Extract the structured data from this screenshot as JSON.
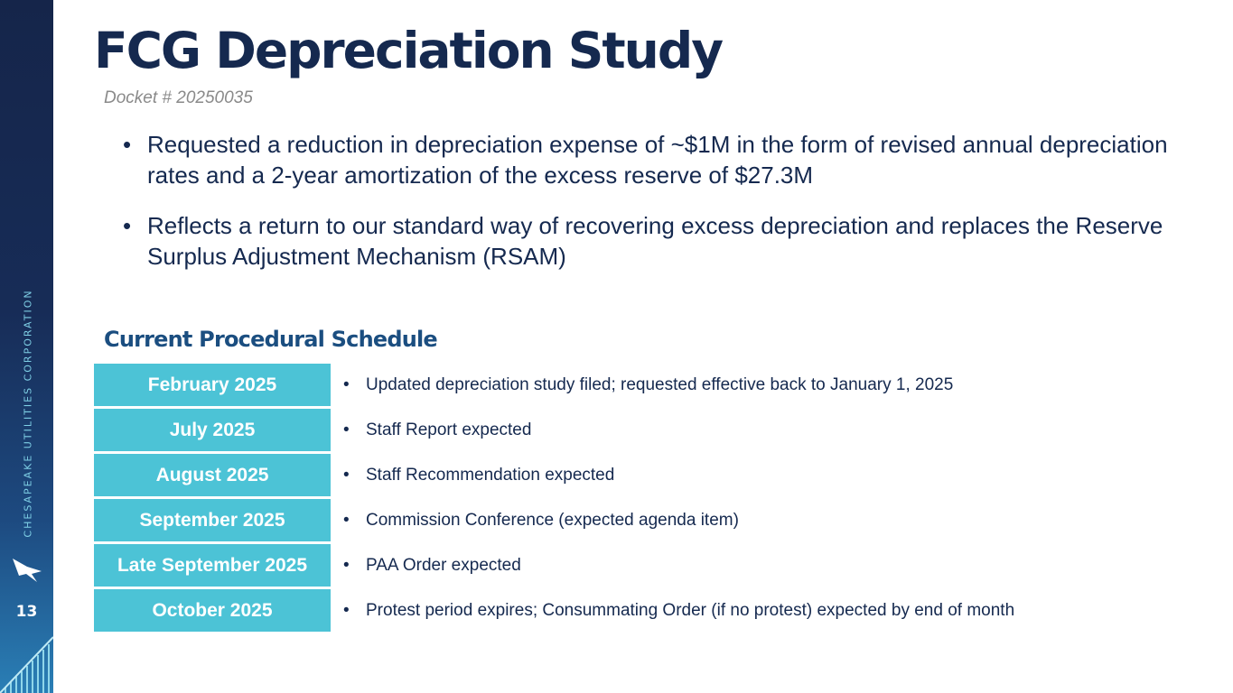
{
  "sidebar": {
    "brand": "CHESAPEAKE UTILITIES CORPORATION",
    "logo_icon": "bird-logo-icon",
    "page_number": "13"
  },
  "header": {
    "title": "FCG Depreciation Study",
    "docket": "Docket # 20250035"
  },
  "bullets": [
    "Requested a reduction in depreciation expense of ~$1M in the form of revised annual depreciation rates and a 2-year amortization of the excess reserve of $27.3M",
    "Reflects a return to our standard way of recovering excess depreciation and replaces the Reserve Surplus Adjustment Mechanism (RSAM)"
  ],
  "schedule": {
    "heading": "Current Procedural Schedule",
    "bullet_glyph": "•",
    "rows": [
      {
        "date": "February 2025",
        "event": "Updated depreciation study filed; requested effective back to January 1, 2025"
      },
      {
        "date": "July 2025",
        "event": "Staff Report expected"
      },
      {
        "date": "August 2025",
        "event": "Staff Recommendation expected"
      },
      {
        "date": "September 2025",
        "event": "Commission Conference (expected agenda item)"
      },
      {
        "date": "Late September 2025",
        "event": "PAA Order expected"
      },
      {
        "date": "October 2025",
        "event": "Protest period expires; Consummating Order (if no protest) expected by end of month"
      }
    ]
  },
  "colors": {
    "title": "#15294f",
    "accent": "#4cc3d6",
    "heading": "#1b4e80",
    "sidebar_top": "#15254a",
    "sidebar_bottom": "#2a7fb6"
  }
}
